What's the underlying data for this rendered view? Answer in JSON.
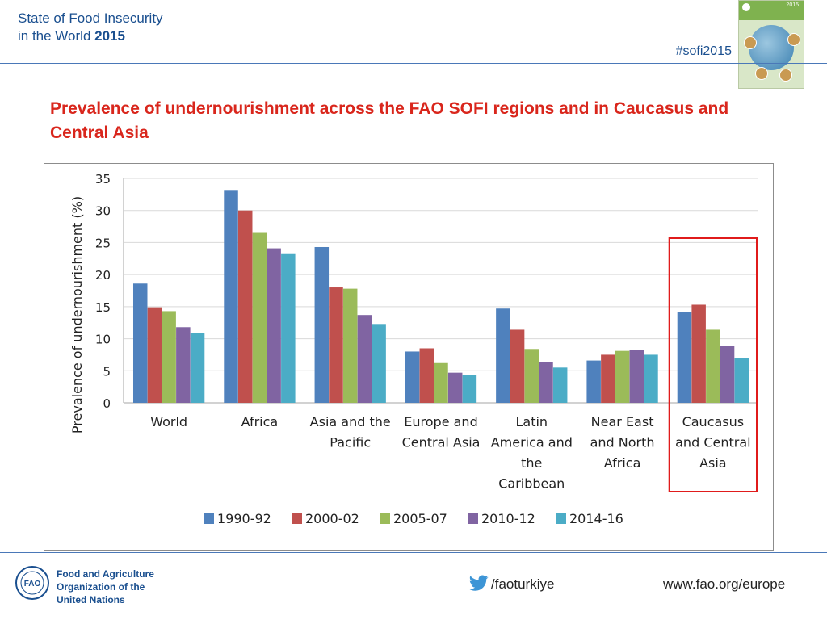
{
  "header": {
    "line1": "State of Food Insecurity",
    "line2_prefix": "in the World",
    "line2_year": "2015",
    "hashtag": "#sofi2015",
    "cover_year": "2015"
  },
  "slide_title": "Prevalence of undernourishment across the FAO SOFI regions and in Caucasus and Central Asia",
  "chart_data": {
    "type": "bar",
    "title": "",
    "xlabel": "",
    "ylabel": "Prevalence of undernourishment (%)",
    "ylim": [
      0,
      35
    ],
    "yticks": [
      0,
      5,
      10,
      15,
      20,
      25,
      30,
      35
    ],
    "grid": true,
    "legend_position": "bottom",
    "categories": [
      [
        "World"
      ],
      [
        "Africa"
      ],
      [
        "Asia and the",
        "Pacific"
      ],
      [
        "Europe and",
        "Central Asia"
      ],
      [
        "Latin",
        "America and",
        "the",
        "Caribbean"
      ],
      [
        "Near East",
        "and North",
        "Africa"
      ],
      [
        "Caucasus",
        "and Central",
        "Asia"
      ]
    ],
    "series": [
      {
        "name": "1990-92",
        "color": "#4f81bd",
        "values": [
          18.6,
          33.2,
          24.3,
          8.0,
          14.7,
          6.6,
          14.1
        ]
      },
      {
        "name": "2000-02",
        "color": "#c0504d",
        "values": [
          14.9,
          30.0,
          18.0,
          8.5,
          11.4,
          7.5,
          15.3
        ]
      },
      {
        "name": "2005-07",
        "color": "#9bbb59",
        "values": [
          14.3,
          26.5,
          17.8,
          6.2,
          8.4,
          8.1,
          11.4
        ]
      },
      {
        "name": "2010-12",
        "color": "#8064a2",
        "values": [
          11.8,
          24.1,
          13.7,
          4.7,
          6.4,
          8.3,
          8.9
        ]
      },
      {
        "name": "2014-16",
        "color": "#4bacc6",
        "values": [
          10.9,
          23.2,
          12.3,
          4.4,
          5.5,
          7.5,
          7.0
        ]
      }
    ],
    "highlight_category": 6,
    "highlight_color": "#e01b1b"
  },
  "footer": {
    "org_line1": "Food and Agriculture",
    "org_line2": "Organization of the",
    "org_line3": "United Nations",
    "twitter_handle": "/faoturkiye",
    "website": "www.fao.org/europe",
    "logo_letters": "FAO"
  }
}
